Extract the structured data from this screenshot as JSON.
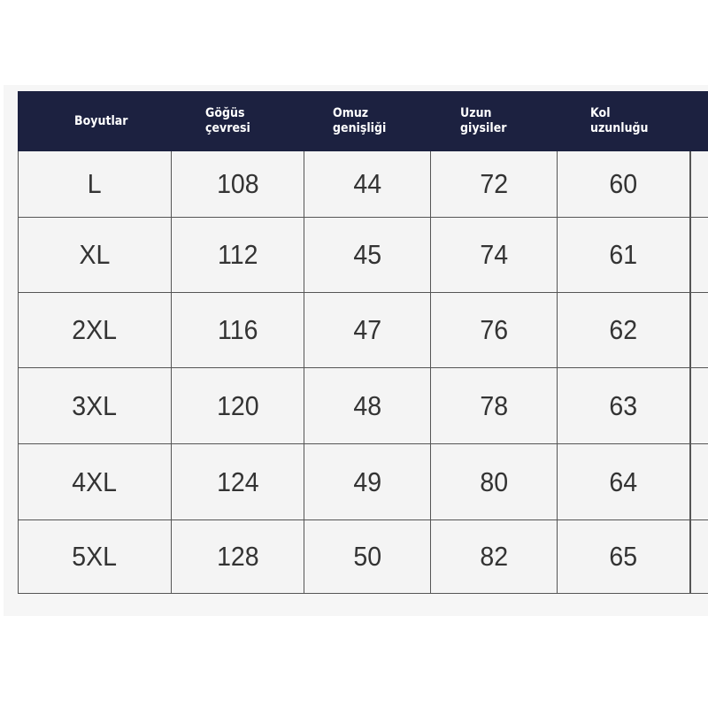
{
  "table": {
    "header_color": "#1c2140",
    "headers": [
      "Boyutlar",
      "Göğüs\nçevresi",
      "Omuz\ngenişliği",
      "Uzun\ngiysiler",
      "Kol\nuzunluğu"
    ],
    "rows": [
      [
        "L",
        "108",
        "44",
        "72",
        "60"
      ],
      [
        "XL",
        "112",
        "45",
        "74",
        "61"
      ],
      [
        "2XL",
        "116",
        "47",
        "76",
        "62"
      ],
      [
        "3XL",
        "120",
        "48",
        "78",
        "63"
      ],
      [
        "4XL",
        "124",
        "49",
        "80",
        "64"
      ],
      [
        "5XL",
        "128",
        "50",
        "82",
        "65"
      ]
    ]
  }
}
